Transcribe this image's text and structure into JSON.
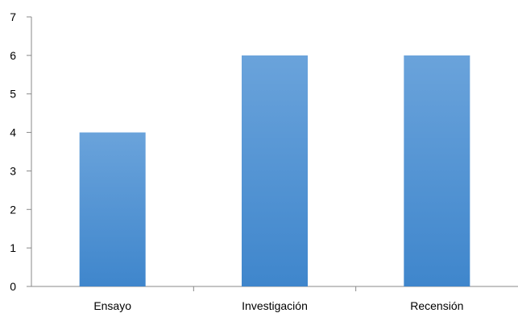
{
  "chart_data": {
    "type": "bar",
    "categories": [
      "Ensayo",
      "Investigación",
      "Recensión"
    ],
    "values": [
      4,
      6,
      6
    ],
    "title": "",
    "xlabel": "",
    "ylabel": "",
    "ylim": [
      0,
      7
    ],
    "yticks": [
      0,
      1,
      2,
      3,
      4,
      5,
      6,
      7
    ],
    "grid": false,
    "legend": "none",
    "colors": {
      "bar_top": "#6aa3db",
      "bar_bottom": "#3f86cc",
      "axis": "#888888"
    }
  }
}
